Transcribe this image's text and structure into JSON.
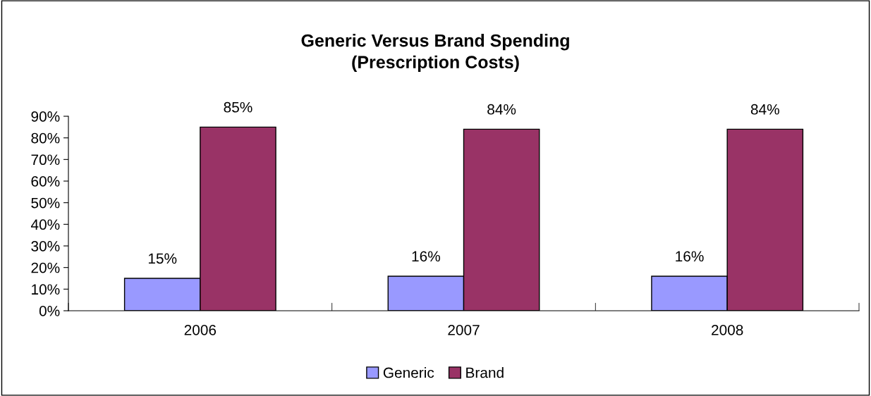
{
  "chart_data": {
    "type": "bar",
    "title": "Generic Versus Brand Spending\n(Prescription Costs)",
    "categories": [
      "2006",
      "2007",
      "2008"
    ],
    "series": [
      {
        "name": "Generic",
        "color": "#9999ff",
        "values": [
          15,
          16,
          16
        ],
        "value_labels": [
          "15%",
          "16%",
          "16%"
        ]
      },
      {
        "name": "Brand",
        "color": "#993366",
        "values": [
          85,
          84,
          84
        ],
        "value_labels": [
          "85%",
          "84%",
          "84%"
        ]
      }
    ],
    "ylim": [
      0,
      90
    ],
    "yticks": [
      {
        "value": 0,
        "label": "0%"
      },
      {
        "value": 10,
        "label": "10%"
      },
      {
        "value": 20,
        "label": "20%"
      },
      {
        "value": 30,
        "label": "30%"
      },
      {
        "value": 40,
        "label": "40%"
      },
      {
        "value": 50,
        "label": "50%"
      },
      {
        "value": 60,
        "label": "60%"
      },
      {
        "value": 70,
        "label": "70%"
      },
      {
        "value": 80,
        "label": "80%"
      },
      {
        "value": 90,
        "label": "90%"
      }
    ],
    "grid": false,
    "legend": "bottom"
  }
}
